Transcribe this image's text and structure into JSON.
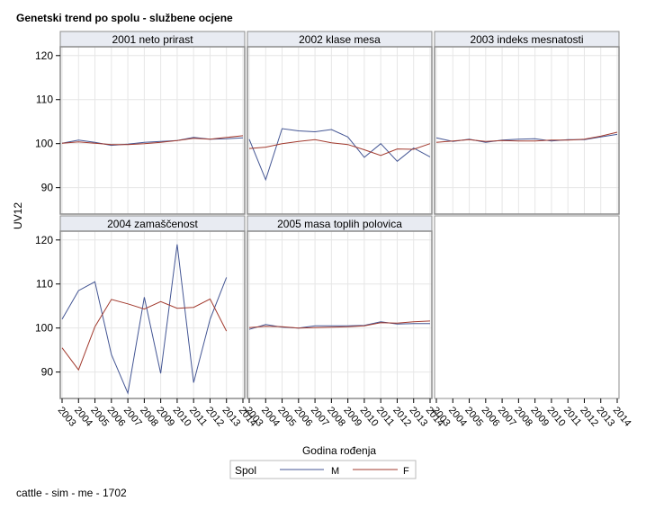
{
  "title": "Genetski trend po spolu - službene ocjene",
  "footer": "cattle - sim - me - 1702",
  "colors": {
    "M": "#445694",
    "F": "#A23A2E",
    "header_bg": "#E8EBF2",
    "grid": "#E6E6E6",
    "frame": "#8C8C8C"
  },
  "chart_data": {
    "type": "line",
    "xlabel": "Godina rođenja",
    "ylabel": "UV12",
    "ylim": [
      84,
      122
    ],
    "yticks": [
      90,
      100,
      110,
      120
    ],
    "xticks": [
      "2003",
      "2004",
      "2005",
      "2006",
      "2007",
      "2008",
      "2009",
      "2010",
      "2011",
      "2012",
      "2013",
      "2014"
    ],
    "legend": {
      "title": "Spol",
      "placement": "bottom-center",
      "entries": [
        "M",
        "F"
      ]
    },
    "panels": [
      {
        "title": "2001 neto prirast",
        "series": [
          {
            "name": "M",
            "values": [
              100.1,
              100.8,
              100.3,
              99.6,
              99.9,
              100.3,
              100.5,
              100.7,
              101.4,
              101.0,
              101.1,
              101.3
            ]
          },
          {
            "name": "F",
            "values": [
              100.1,
              100.4,
              100.1,
              99.8,
              99.8,
              100.0,
              100.3,
              100.7,
              101.2,
              101.0,
              101.4,
              101.8
            ]
          }
        ]
      },
      {
        "title": "2002 klase mesa",
        "series": [
          {
            "name": "M",
            "values": [
              101.0,
              91.8,
              103.4,
              102.9,
              102.7,
              103.2,
              101.5,
              96.9,
              100.0,
              96.0,
              99.0,
              97.0
            ]
          },
          {
            "name": "F",
            "values": [
              98.9,
              99.2,
              100.0,
              100.5,
              100.9,
              100.2,
              99.8,
              98.6,
              97.3,
              98.8,
              98.7,
              100.0
            ]
          }
        ]
      },
      {
        "title": "2003 indeks mesnatosti",
        "series": [
          {
            "name": "M",
            "values": [
              101.3,
              100.5,
              101.0,
              100.3,
              100.8,
              101.0,
              101.1,
              100.6,
              100.9,
              100.9,
              101.5,
              102.1
            ]
          },
          {
            "name": "F",
            "values": [
              100.3,
              100.6,
              100.9,
              100.5,
              100.7,
              100.6,
              100.6,
              100.8,
              100.8,
              101.0,
              101.7,
              102.6
            ]
          }
        ]
      },
      {
        "title": "2004 zamaščenost",
        "series": [
          {
            "name": "M",
            "values": [
              102.0,
              108.5,
              110.5,
              94.0,
              85.2,
              107.0,
              89.7,
              119.0,
              87.6,
              102.0,
              111.5,
              null
            ]
          },
          {
            "name": "F",
            "values": [
              95.5,
              90.5,
              100.3,
              106.5,
              105.5,
              104.3,
              106.0,
              104.5,
              104.7,
              106.6,
              99.3,
              null
            ]
          }
        ]
      },
      {
        "title": "2005 masa toplih polovica",
        "series": [
          {
            "name": "M",
            "values": [
              99.7,
              100.8,
              100.2,
              100.0,
              100.5,
              100.5,
              100.5,
              100.6,
              101.4,
              100.9,
              101.0,
              101.0
            ]
          },
          {
            "name": "F",
            "values": [
              100.1,
              100.4,
              100.3,
              100.0,
              100.1,
              100.2,
              100.3,
              100.5,
              101.2,
              101.1,
              101.4,
              101.6
            ]
          }
        ]
      }
    ]
  }
}
